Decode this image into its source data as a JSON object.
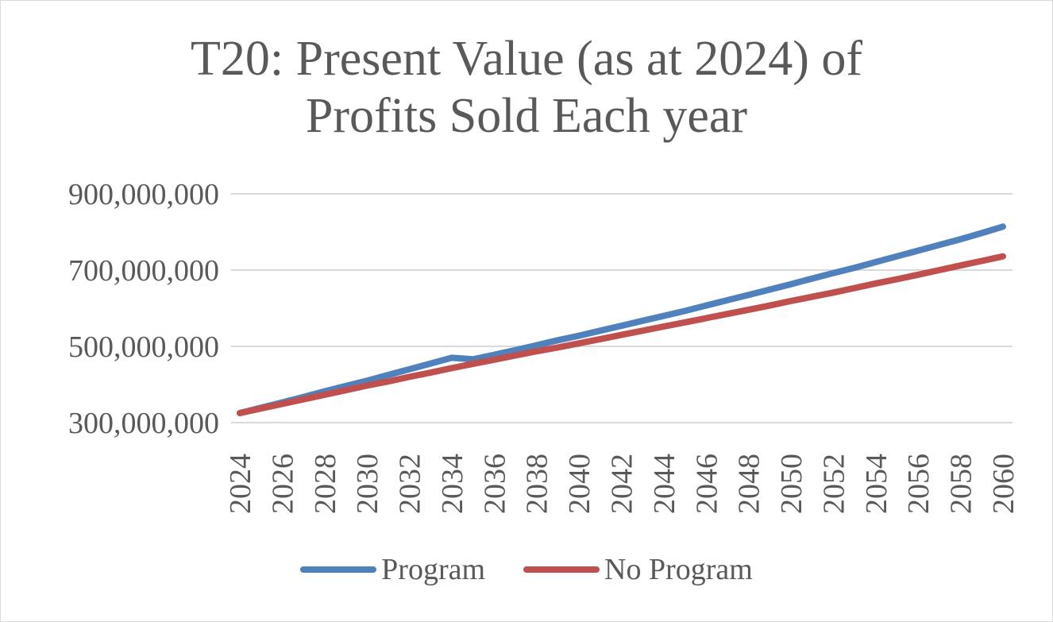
{
  "chart_data": {
    "type": "line",
    "title_lines": [
      "T20: Present Value (as at 2024) of",
      "Profits Sold Each year"
    ],
    "xlabel": "",
    "ylabel": "",
    "ylim": [
      300000000,
      900000000
    ],
    "yticks": [
      300000000,
      500000000,
      700000000,
      900000000
    ],
    "ytick_labels": [
      "300,000,000",
      "500,000,000",
      "700,000,000",
      "900,000,000"
    ],
    "xtick_labels": [
      "2024",
      "2026",
      "2028",
      "2030",
      "2032",
      "2034",
      "2036",
      "2038",
      "2040",
      "2042",
      "2044",
      "2046",
      "2048",
      "2050",
      "2052",
      "2054",
      "2056",
      "2058",
      "2060"
    ],
    "x": [
      2024,
      2025,
      2026,
      2027,
      2028,
      2029,
      2030,
      2031,
      2032,
      2033,
      2034,
      2035,
      2036,
      2037,
      2038,
      2039,
      2040,
      2041,
      2042,
      2043,
      2044,
      2045,
      2046,
      2047,
      2048,
      2049,
      2050,
      2051,
      2052,
      2053,
      2054,
      2055,
      2056,
      2057,
      2058,
      2059,
      2060
    ],
    "grid": true,
    "legend_position": "bottom",
    "series": [
      {
        "name": "Program",
        "color": "#4f81bd",
        "values": [
          325000000,
          339000000,
          353000000,
          367000000,
          382000000,
          396000000,
          410000000,
          425000000,
          440000000,
          455000000,
          470000000,
          466000000,
          478000000,
          490000000,
          503000000,
          516000000,
          528000000,
          541000000,
          554000000,
          567000000,
          580000000,
          593000000,
          607000000,
          621000000,
          635000000,
          649000000,
          663000000,
          678000000,
          692000000,
          706000000,
          721000000,
          736000000,
          751000000,
          766000000,
          781000000,
          797000000,
          814000000
        ]
      },
      {
        "name": "No Program",
        "color": "#c0504d",
        "values": [
          325000000,
          337000000,
          349000000,
          361000000,
          373000000,
          385000000,
          397000000,
          408000000,
          420000000,
          431000000,
          443000000,
          454000000,
          465000000,
          476000000,
          487000000,
          497000000,
          508000000,
          519000000,
          530000000,
          541000000,
          552000000,
          563000000,
          574000000,
          585000000,
          596000000,
          607000000,
          619000000,
          630000000,
          641000000,
          653000000,
          665000000,
          676000000,
          688000000,
          700000000,
          712000000,
          724000000,
          736000000
        ]
      }
    ]
  }
}
